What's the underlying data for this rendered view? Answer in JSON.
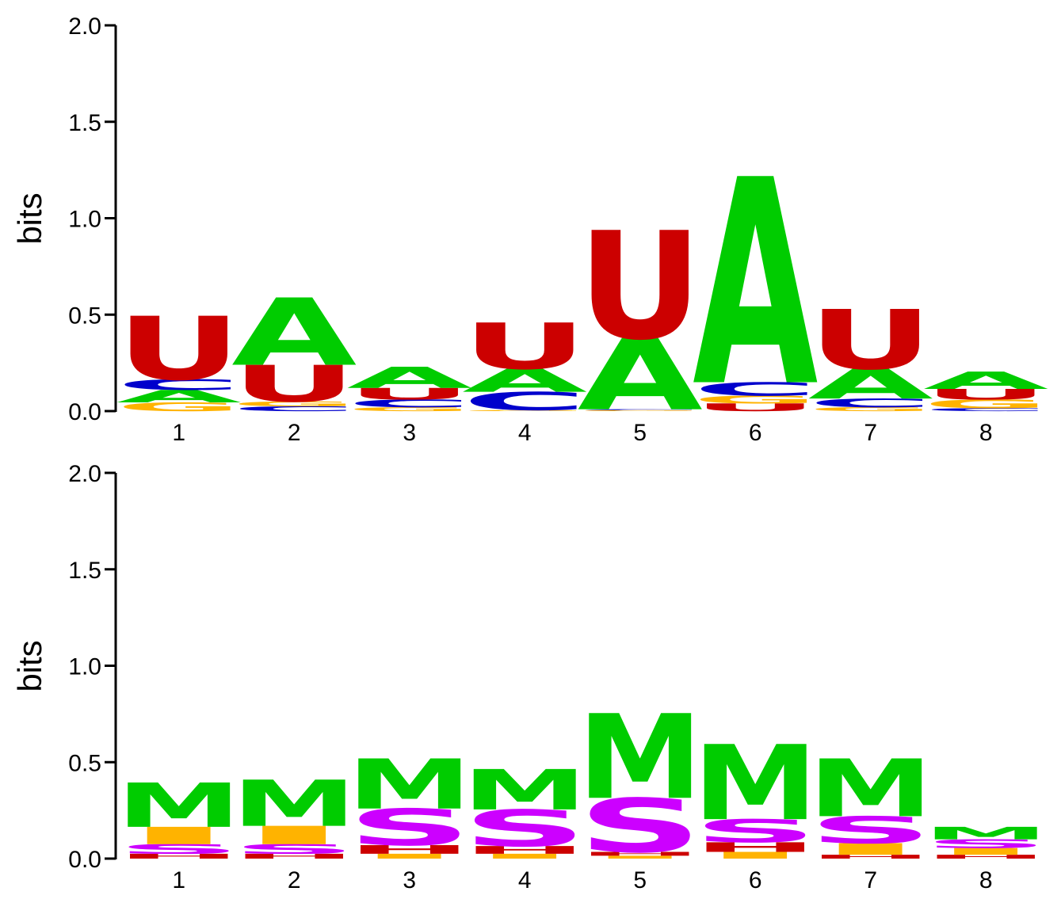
{
  "chart_data": [
    {
      "type": "sequence-logo",
      "ylabel": "bits",
      "ylim": [
        0,
        2.0
      ],
      "yticks": [
        "0.0",
        "0.5",
        "1.0",
        "1.5",
        "2.0"
      ],
      "positions": [
        "1",
        "2",
        "3",
        "4",
        "5",
        "6",
        "7",
        "8"
      ],
      "colors": {
        "U": "#cc0000",
        "A": "#00cc00",
        "C": "#0000cc",
        "G": "#ffb300"
      },
      "stacks": [
        [
          {
            "letter": "G",
            "height": 0.045
          },
          {
            "letter": "A",
            "height": 0.065
          },
          {
            "letter": "C",
            "height": 0.055
          },
          {
            "letter": "U",
            "height": 0.33
          }
        ],
        [
          {
            "letter": "C",
            "height": 0.025
          },
          {
            "letter": "G",
            "height": 0.025
          },
          {
            "letter": "U",
            "height": 0.19
          },
          {
            "letter": "A",
            "height": 0.35
          }
        ],
        [
          {
            "letter": "G",
            "height": 0.02
          },
          {
            "letter": "C",
            "height": 0.04
          },
          {
            "letter": "U",
            "height": 0.06
          },
          {
            "letter": "A",
            "height": 0.11
          }
        ],
        [
          {
            "letter": "G",
            "height": 0.005
          },
          {
            "letter": "C",
            "height": 0.095
          },
          {
            "letter": "A",
            "height": 0.12
          },
          {
            "letter": "U",
            "height": 0.24
          }
        ],
        [
          {
            "letter": "G",
            "height": 0.005
          },
          {
            "letter": "C",
            "height": 0.005
          },
          {
            "letter": "A",
            "height": 0.37
          },
          {
            "letter": "U",
            "height": 0.56
          }
        ],
        [
          {
            "letter": "U",
            "height": 0.04
          },
          {
            "letter": "G",
            "height": 0.04
          },
          {
            "letter": "C",
            "height": 0.07
          },
          {
            "letter": "A",
            "height": 1.07
          }
        ],
        [
          {
            "letter": "G",
            "height": 0.02
          },
          {
            "letter": "C",
            "height": 0.045
          },
          {
            "letter": "A",
            "height": 0.155
          },
          {
            "letter": "U",
            "height": 0.31
          }
        ],
        [
          {
            "letter": "C",
            "height": 0.015
          },
          {
            "letter": "G",
            "height": 0.045
          },
          {
            "letter": "U",
            "height": 0.055
          },
          {
            "letter": "A",
            "height": 0.09
          }
        ]
      ]
    },
    {
      "type": "sequence-logo",
      "ylabel": "bits",
      "ylim": [
        0,
        2.0
      ],
      "yticks": [
        "0.0",
        "0.5",
        "1.0",
        "1.5",
        "2.0"
      ],
      "positions": [
        "1",
        "2",
        "3",
        "4",
        "5",
        "6",
        "7",
        "8"
      ],
      "colors": {
        "M": "#00cc00",
        "S": "#cc00ff",
        "I": "#ffb300",
        "H": "#cc0000"
      },
      "stacks": [
        [
          {
            "letter": "H",
            "height": 0.025
          },
          {
            "letter": "S",
            "height": 0.05
          },
          {
            "letter": "I",
            "height": 0.09
          },
          {
            "letter": "M",
            "height": 0.23
          }
        ],
        [
          {
            "letter": "H",
            "height": 0.025
          },
          {
            "letter": "S",
            "height": 0.05
          },
          {
            "letter": "I",
            "height": 0.095
          },
          {
            "letter": "M",
            "height": 0.24
          }
        ],
        [
          {
            "letter": "I",
            "height": 0.025
          },
          {
            "letter": "H",
            "height": 0.045
          },
          {
            "letter": "S",
            "height": 0.19
          },
          {
            "letter": "M",
            "height": 0.26
          }
        ],
        [
          {
            "letter": "I",
            "height": 0.025
          },
          {
            "letter": "H",
            "height": 0.04
          },
          {
            "letter": "S",
            "height": 0.19
          },
          {
            "letter": "M",
            "height": 0.21
          }
        ],
        [
          {
            "letter": "I",
            "height": 0.015
          },
          {
            "letter": "H",
            "height": 0.02
          },
          {
            "letter": "S",
            "height": 0.28
          },
          {
            "letter": "M",
            "height": 0.44
          }
        ],
        [
          {
            "letter": "I",
            "height": 0.035
          },
          {
            "letter": "H",
            "height": 0.05
          },
          {
            "letter": "S",
            "height": 0.12
          },
          {
            "letter": "M",
            "height": 0.39
          }
        ],
        [
          {
            "letter": "H",
            "height": 0.02
          },
          {
            "letter": "I",
            "height": 0.06
          },
          {
            "letter": "S",
            "height": 0.14
          },
          {
            "letter": "M",
            "height": 0.3
          }
        ],
        [
          {
            "letter": "H",
            "height": 0.02
          },
          {
            "letter": "I",
            "height": 0.035
          },
          {
            "letter": "S",
            "height": 0.045
          },
          {
            "letter": "M",
            "height": 0.065
          }
        ]
      ]
    }
  ]
}
